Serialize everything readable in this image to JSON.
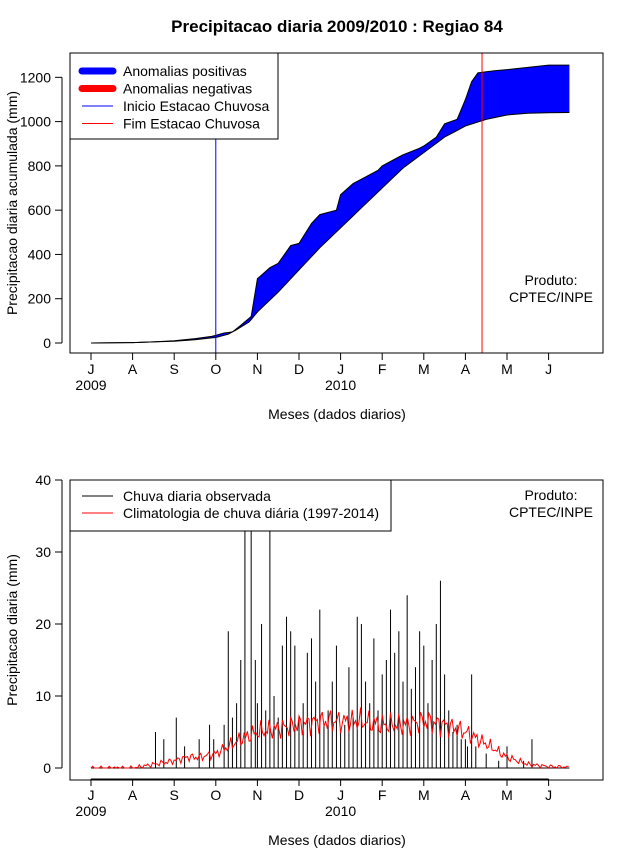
{
  "chart_data": [
    {
      "type": "area",
      "title": "Precipitacao diaria 2009/2010 : Regiao 84",
      "xlabel": "Meses (dados diarios)",
      "ylabel": "Precipitacao diaria acumulada (mm)",
      "ylim": [
        0,
        1300
      ],
      "yticks": [
        0,
        200,
        400,
        600,
        800,
        1000,
        1200
      ],
      "month_ticks": [
        "J",
        "A",
        "S",
        "O",
        "N",
        "D",
        "J",
        "F",
        "M",
        "A",
        "M",
        "J"
      ],
      "year_labels": [
        "2009",
        "2010"
      ],
      "legend": [
        {
          "label": "Anomalias positivas",
          "color": "#0000ff",
          "style": "thick"
        },
        {
          "label": "Anomalias negativas",
          "color": "#ff0000",
          "style": "thick"
        },
        {
          "label": "Inicio Estacao Chuvosa",
          "color": "#0000ff",
          "style": "thin"
        },
        {
          "label": "Fim Estacao Chuvosa",
          "color": "#ff0000",
          "style": "thin"
        }
      ],
      "annotation": [
        "Produto:",
        "CPTEC/INPE"
      ],
      "rainy_season_start_month": 3,
      "rainy_season_end_month": 9.4,
      "climatology_cumulative": {
        "month_index": [
          0,
          1,
          2,
          2.5,
          3,
          3.3,
          3.5,
          3.8,
          4,
          4.5,
          5,
          5.5,
          6,
          6.5,
          7,
          7.5,
          8,
          8.5,
          9,
          9.5,
          10,
          10.5,
          11,
          11.5
        ],
        "values": [
          0,
          2,
          8,
          15,
          25,
          40,
          60,
          95,
          140,
          230,
          330,
          430,
          520,
          610,
          700,
          790,
          860,
          930,
          980,
          1010,
          1030,
          1038,
          1040,
          1041
        ]
      },
      "observed_cumulative": {
        "month_index": [
          0,
          1,
          1.5,
          2,
          2.5,
          2.9,
          3.2,
          3.4,
          3.6,
          3.85,
          4,
          4.3,
          4.5,
          4.8,
          5,
          5.3,
          5.5,
          5.9,
          6,
          6.3,
          6.5,
          6.9,
          7,
          7.4,
          7.5,
          7.9,
          8,
          8.3,
          8.5,
          8.8,
          9,
          9.15,
          9.3,
          9.7,
          10,
          10.5,
          11,
          11.5
        ],
        "values": [
          0,
          2,
          5,
          10,
          20,
          30,
          45,
          50,
          80,
          120,
          290,
          340,
          360,
          440,
          450,
          540,
          580,
          600,
          670,
          720,
          740,
          780,
          800,
          840,
          850,
          880,
          890,
          930,
          990,
          1010,
          1100,
          1180,
          1220,
          1230,
          1235,
          1245,
          1255,
          1255
        ]
      }
    },
    {
      "type": "bar",
      "xlabel": "Meses (dados diarios)",
      "ylabel": "Precipitacao diaria (mm)",
      "ylim": [
        0,
        40
      ],
      "yticks": [
        0,
        10,
        20,
        30,
        40
      ],
      "month_ticks": [
        "J",
        "A",
        "S",
        "O",
        "N",
        "D",
        "J",
        "F",
        "M",
        "A",
        "M",
        "J"
      ],
      "year_labels": [
        "2009",
        "2010"
      ],
      "legend": [
        {
          "label": "Chuva diaria observada",
          "color": "#000000"
        },
        {
          "label": "Climatologia de chuva diária (1997-2014)",
          "color": "#ff0000"
        }
      ],
      "annotation": [
        "Produto:",
        "CPTEC/INPE"
      ],
      "daily_observed": {
        "month_index": [
          1.55,
          1.75,
          2.05,
          2.25,
          2.6,
          2.85,
          2.95,
          3.2,
          3.3,
          3.4,
          3.5,
          3.6,
          3.7,
          3.85,
          3.95,
          4.0,
          4.1,
          4.2,
          4.3,
          4.4,
          4.5,
          4.6,
          4.7,
          4.8,
          4.9,
          5.0,
          5.1,
          5.2,
          5.3,
          5.4,
          5.5,
          5.6,
          5.7,
          5.8,
          5.9,
          6.0,
          6.1,
          6.2,
          6.3,
          6.4,
          6.5,
          6.6,
          6.7,
          6.8,
          6.9,
          7.0,
          7.1,
          7.2,
          7.3,
          7.4,
          7.5,
          7.6,
          7.7,
          7.8,
          7.9,
          8.0,
          8.1,
          8.2,
          8.3,
          8.4,
          8.5,
          8.6,
          8.7,
          8.8,
          8.9,
          9.0,
          9.05,
          9.15,
          9.25,
          9.5,
          9.8,
          10.0,
          10.4,
          10.6
        ],
        "values": [
          5,
          4,
          7,
          3,
          4,
          6,
          4,
          6,
          19,
          7,
          9,
          15,
          33,
          33,
          15,
          9,
          20,
          8,
          33,
          10,
          7,
          17,
          21,
          19,
          17,
          7,
          9,
          16,
          18,
          12,
          22,
          6,
          8,
          12,
          17,
          5,
          6,
          14,
          7,
          21,
          20,
          12,
          9,
          18,
          8,
          13,
          15,
          22,
          16,
          19,
          12,
          24,
          11,
          14,
          19,
          17,
          9,
          15,
          20,
          26,
          13,
          8,
          5,
          6,
          4,
          4,
          3,
          13,
          3,
          2,
          1,
          3,
          1,
          4
        ]
      },
      "daily_climatology": {
        "month_index": [
          0,
          1,
          1.5,
          2,
          2.3,
          2.6,
          3,
          3.3,
          3.6,
          4,
          4.5,
          5,
          5.5,
          6,
          6.5,
          7,
          7.5,
          8,
          8.5,
          9,
          9.3,
          9.6,
          10,
          10.5,
          11,
          11.5
        ],
        "values": [
          0,
          0,
          0.5,
          1,
          1.5,
          1.5,
          2,
          3,
          4,
          5,
          5.5,
          6,
          6.5,
          6.5,
          6.5,
          6,
          6,
          6.5,
          6,
          5,
          4,
          3,
          1.5,
          0.5,
          0.2,
          0.1
        ]
      }
    }
  ]
}
